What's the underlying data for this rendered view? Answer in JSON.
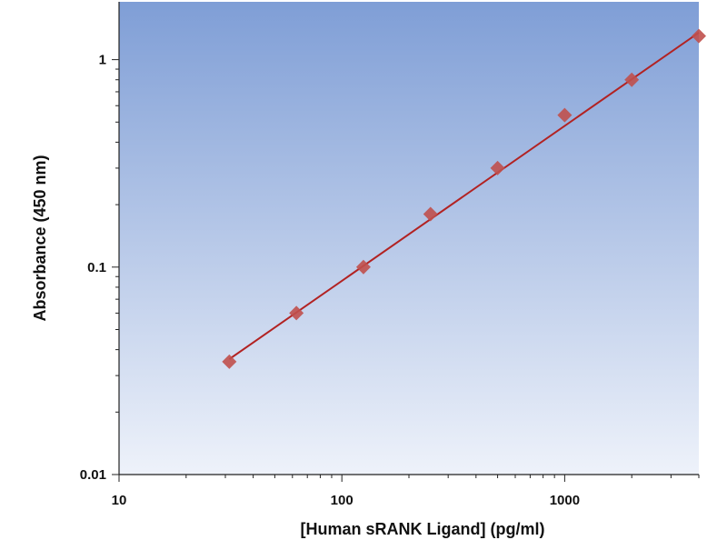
{
  "chart_data": {
    "type": "scatter",
    "title": "",
    "xlabel": "[Human sRANK Ligand] (pg/ml)",
    "ylabel": "Absorbance (450 nm)",
    "x_scale": "log",
    "y_scale": "log",
    "xlim": [
      10,
      4000
    ],
    "ylim": [
      0.01,
      1.9
    ],
    "x_ticks": [
      10,
      100,
      1000
    ],
    "x_tick_labels": [
      "10",
      "100",
      "1000"
    ],
    "y_ticks": [
      0.01,
      0.1,
      1
    ],
    "y_tick_labels": [
      "0.01",
      "0.1",
      "1"
    ],
    "grid": false,
    "series": [
      {
        "x": [
          31.25,
          62.5,
          125,
          250,
          500,
          1000,
          2000,
          4000
        ],
        "y": [
          0.035,
          0.06,
          0.1,
          0.18,
          0.3,
          0.54,
          0.8,
          1.3
        ],
        "marker": "diamond",
        "color": "#c0504d"
      }
    ],
    "fit_line": {
      "x": [
        31.25,
        4000
      ],
      "y": [
        0.036,
        1.35
      ],
      "color": "#b22222"
    },
    "background_gradient": [
      "#7f9ed6",
      "#eef2fa"
    ]
  }
}
